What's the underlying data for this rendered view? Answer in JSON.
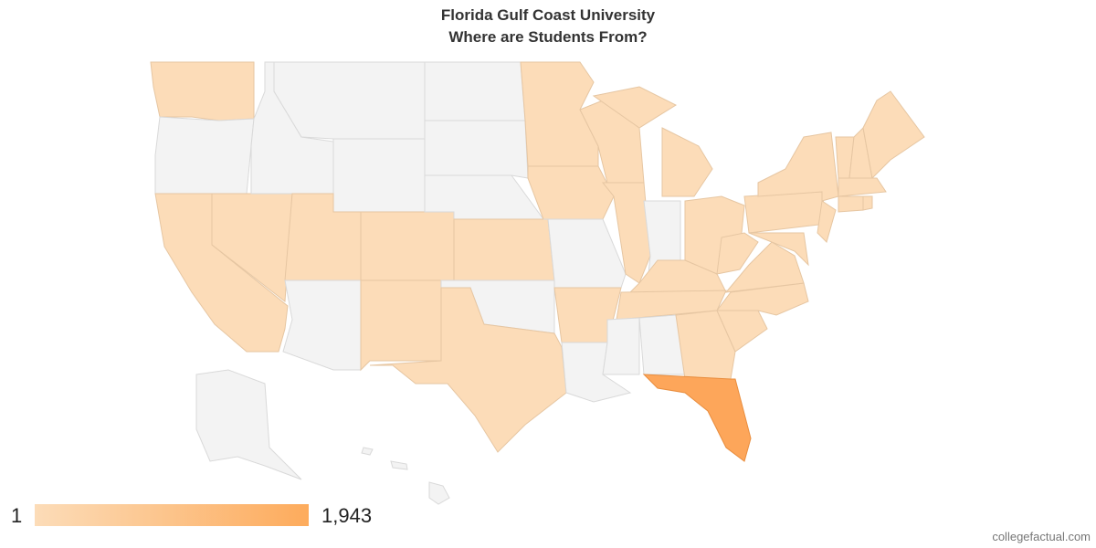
{
  "header": {
    "title": [
      "Florida Gulf Coast University",
      "Where are Students From?"
    ]
  },
  "legend": {
    "min": 1,
    "max": {
      "value": 1943,
      "label": "1,943"
    },
    "colors": [
      "#fcdcb8",
      "#fdab5c"
    ]
  },
  "footer": {
    "source": "collegefactual.com"
  }
}
